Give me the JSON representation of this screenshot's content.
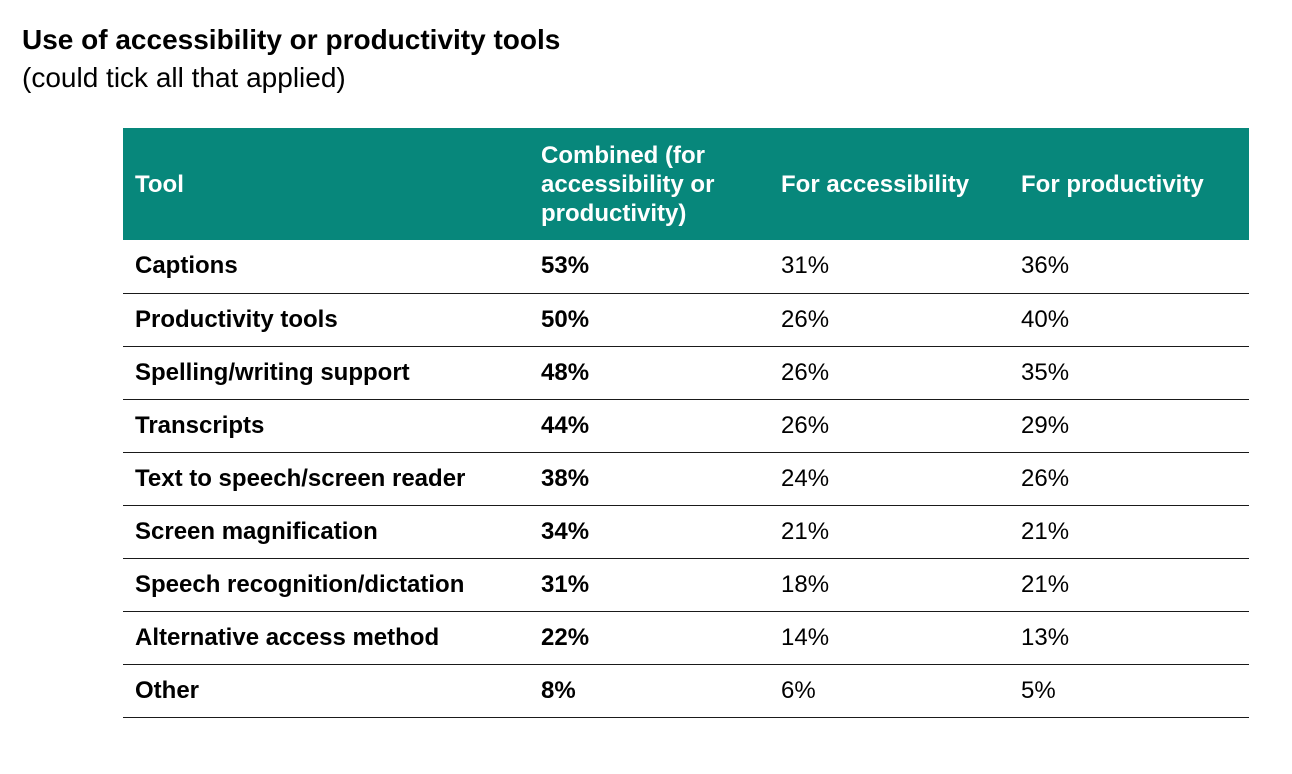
{
  "chart_data": {
    "type": "table",
    "title": "Use of accessibility or productivity tools",
    "subtitle": "(could tick all that applied)",
    "columns": [
      "Tool",
      "Combined (for accessibility or productivity)",
      "For accessibility",
      "For productivity"
    ],
    "rows": [
      {
        "tool": "Captions",
        "combined": "53%",
        "accessibility": "31%",
        "productivity": "36%"
      },
      {
        "tool": "Productivity tools",
        "combined": "50%",
        "accessibility": "26%",
        "productivity": "40%"
      },
      {
        "tool": "Spelling/writing support",
        "combined": "48%",
        "accessibility": "26%",
        "productivity": "35%"
      },
      {
        "tool": "Transcripts",
        "combined": "44%",
        "accessibility": "26%",
        "productivity": "29%"
      },
      {
        "tool": "Text to speech/screen reader",
        "combined": "38%",
        "accessibility": "24%",
        "productivity": "26%"
      },
      {
        "tool": "Screen magnification",
        "combined": "34%",
        "accessibility": "21%",
        "productivity": "21%"
      },
      {
        "tool": "Speech recognition/dictation",
        "combined": "31%",
        "accessibility": "18%",
        "productivity": "21%"
      },
      {
        "tool": "Alternative access method",
        "combined": "22%",
        "accessibility": "14%",
        "productivity": "13%"
      },
      {
        "tool": "Other",
        "combined": "8%",
        "accessibility": "6%",
        "productivity": "5%"
      }
    ]
  },
  "colors": {
    "header_bg": "#07877b",
    "header_text": "#ffffff",
    "row_rule": "#1a1a1a"
  }
}
